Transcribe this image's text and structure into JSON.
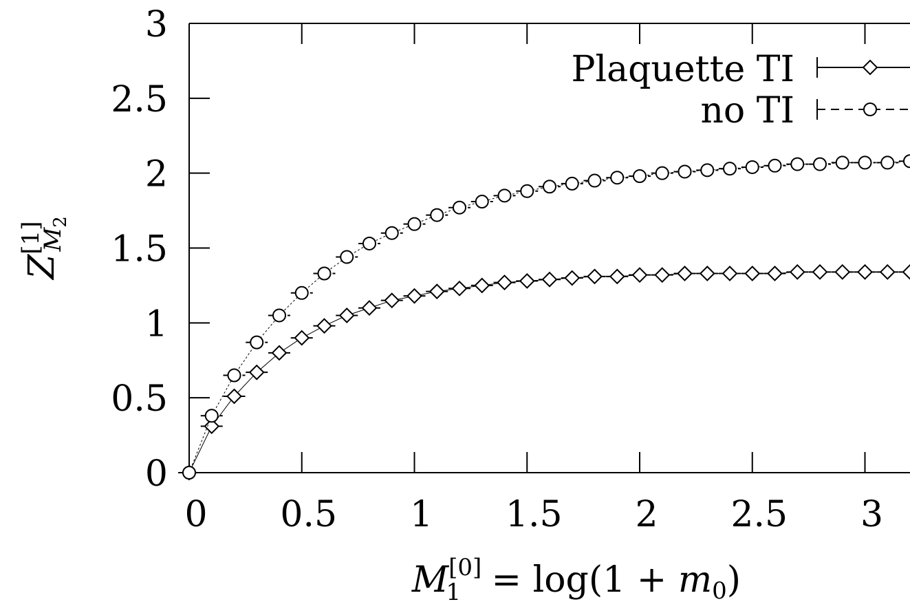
{
  "chart_data": {
    "type": "scatter",
    "title": "",
    "xlabel": {
      "M": "M",
      "sub": "1",
      "sup": "[0]",
      "eq": " = log(1 + ",
      "m": "m",
      "msub": "0",
      "close": ")"
    },
    "ylabel": {
      "Z": "Z",
      "sup": "[1]",
      "M": "M",
      "msub": "2"
    },
    "xlim": [
      0,
      3.2
    ],
    "ylim": [
      0,
      3
    ],
    "x_ticks": [
      0,
      0.5,
      1,
      1.5,
      2,
      2.5,
      3
    ],
    "x_tick_labels": [
      "0",
      "0.5",
      "1",
      "1.5",
      "2",
      "2.5",
      "3"
    ],
    "y_ticks": [
      0,
      0.5,
      1,
      1.5,
      2,
      2.5,
      3
    ],
    "y_tick_labels": [
      "0",
      "0.5",
      "1",
      "1.5",
      "2",
      "2.5",
      "3"
    ],
    "grid": false,
    "legend_position": "top-right",
    "x": [
      0,
      0.1,
      0.2,
      0.3,
      0.4,
      0.5,
      0.6,
      0.7,
      0.8,
      0.9,
      1.0,
      1.1,
      1.2,
      1.3,
      1.4,
      1.5,
      1.6,
      1.7,
      1.8,
      1.9,
      2.0,
      2.1,
      2.2,
      2.3,
      2.4,
      2.5,
      2.6,
      2.7,
      2.8,
      2.9,
      3.0,
      3.1,
      3.2
    ],
    "series": [
      {
        "name": "Plaquette TI",
        "marker": "diamond",
        "line": "solid",
        "values": [
          0,
          0.31,
          0.51,
          0.67,
          0.8,
          0.9,
          0.98,
          1.05,
          1.1,
          1.15,
          1.18,
          1.21,
          1.23,
          1.25,
          1.27,
          1.28,
          1.29,
          1.3,
          1.31,
          1.31,
          1.32,
          1.32,
          1.33,
          1.33,
          1.33,
          1.33,
          1.33,
          1.34,
          1.34,
          1.34,
          1.34,
          1.34,
          1.34
        ]
      },
      {
        "name": "no TI",
        "marker": "circle",
        "line": "dashed",
        "values": [
          0,
          0.38,
          0.65,
          0.87,
          1.05,
          1.2,
          1.33,
          1.44,
          1.53,
          1.6,
          1.66,
          1.72,
          1.77,
          1.81,
          1.85,
          1.88,
          1.91,
          1.93,
          1.95,
          1.97,
          1.98,
          2.0,
          2.01,
          2.02,
          2.03,
          2.04,
          2.05,
          2.06,
          2.06,
          2.07,
          2.07,
          2.07,
          2.08
        ]
      }
    ]
  }
}
